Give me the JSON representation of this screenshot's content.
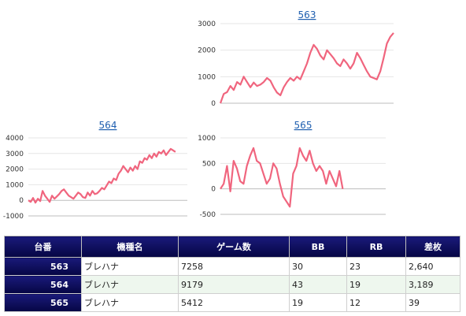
{
  "charts": [
    {
      "id": "563",
      "title": "563",
      "chart_data": {
        "type": "line",
        "title": "563",
        "color": "#f0657e",
        "ylim": [
          0,
          3000
        ],
        "yticks": [
          0,
          1000,
          2000,
          3000
        ],
        "xlim": [
          0,
          52
        ],
        "values": [
          0,
          350,
          420,
          650,
          500,
          800,
          700,
          1000,
          800,
          600,
          780,
          650,
          700,
          800,
          950,
          850,
          600,
          400,
          300,
          600,
          800,
          950,
          850,
          1000,
          900,
          1200,
          1500,
          1900,
          2200,
          2050,
          1800,
          1650,
          2000,
          1850,
          1700,
          1500,
          1400,
          1650,
          1500,
          1300,
          1500,
          1900,
          1700,
          1450,
          1200,
          1000,
          950,
          900,
          1200,
          1700,
          2250,
          2500,
          2650
        ]
      }
    },
    {
      "id": "564",
      "title": "564",
      "chart_data": {
        "type": "line",
        "title": "564",
        "color": "#f0657e",
        "ylim": [
          -1000,
          4000
        ],
        "yticks": [
          -1000,
          0,
          1000,
          2000,
          3000,
          4000
        ],
        "xlim": [
          0,
          67
        ],
        "values": [
          0,
          -100,
          150,
          -150,
          100,
          -50,
          600,
          300,
          100,
          -100,
          300,
          100,
          250,
          400,
          600,
          700,
          500,
          300,
          200,
          100,
          300,
          500,
          400,
          200,
          150,
          500,
          300,
          600,
          400,
          450,
          600,
          800,
          700,
          950,
          1200,
          1100,
          1400,
          1300,
          1700,
          1900,
          2200,
          2000,
          1800,
          2100,
          1900,
          2200,
          2000,
          2500,
          2400,
          2700,
          2600,
          2900,
          2700,
          3000,
          2800,
          3100,
          3000,
          3200,
          2900,
          3100,
          3300,
          3200,
          3100
        ]
      }
    },
    {
      "id": "565",
      "title": "565",
      "chart_data": {
        "type": "line",
        "title": "565",
        "color": "#f0657e",
        "ylim": [
          -500,
          1000
        ],
        "yticks": [
          -500,
          0,
          500,
          1000
        ],
        "xlim": [
          0,
          50
        ],
        "values": [
          0,
          100,
          450,
          -50,
          550,
          400,
          150,
          100,
          450,
          650,
          800,
          550,
          500,
          300,
          100,
          200,
          500,
          400,
          100,
          -150,
          -250,
          -350,
          300,
          450,
          800,
          650,
          550,
          750,
          500,
          350,
          450,
          350,
          100,
          350,
          200,
          50,
          350,
          0
        ]
      }
    }
  ],
  "table": {
    "headers": [
      "台番",
      "機種名",
      "ゲーム数",
      "BB",
      "RB",
      "差枚"
    ],
    "rows": [
      [
        "563",
        "ブレハナ",
        "7258",
        "30",
        "23",
        "2,640"
      ],
      [
        "564",
        "ブレハナ",
        "9179",
        "43",
        "19",
        "3,189"
      ],
      [
        "565",
        "ブレハナ",
        "5412",
        "19",
        "12",
        "39"
      ]
    ]
  }
}
